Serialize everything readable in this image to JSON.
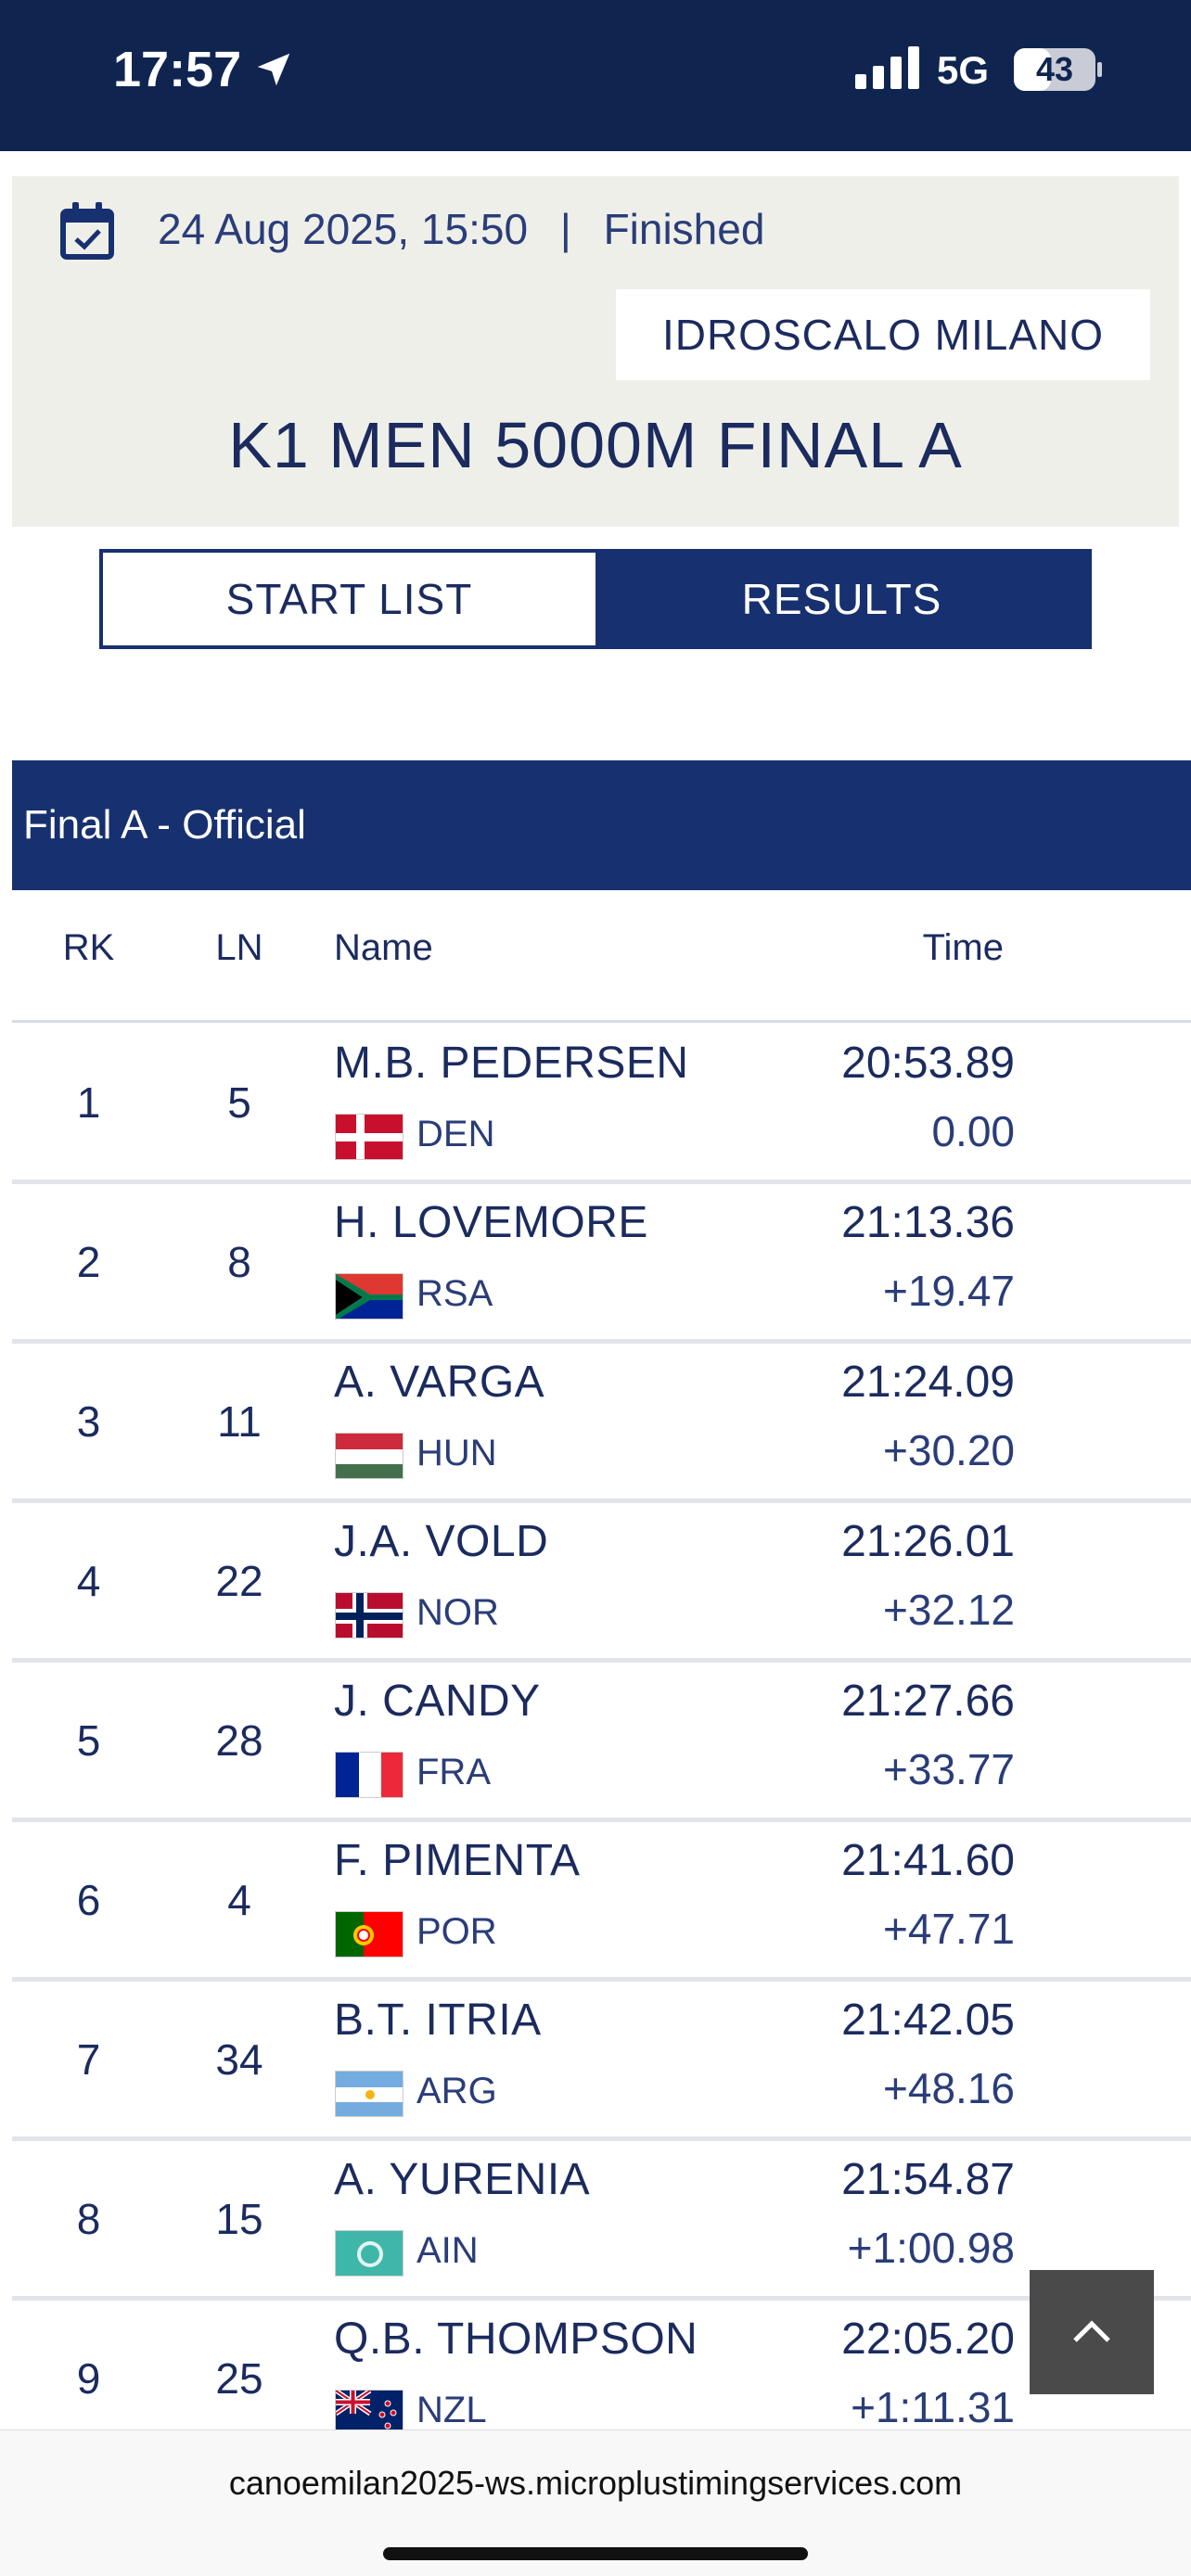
{
  "status_bar": {
    "time": "17:57",
    "network": "5G",
    "battery": "43"
  },
  "event": {
    "date_time": "24 Aug 2025, 15:50",
    "separator": "|",
    "status": "Finished",
    "venue": "IDROSCALO MILANO",
    "title": "K1 MEN 5000M FINAL A"
  },
  "tabs": [
    {
      "label": "START LIST",
      "active": false
    },
    {
      "label": "RESULTS",
      "active": true
    }
  ],
  "results": {
    "header": "Final A  -  Official",
    "columns": {
      "rank": "RK",
      "lane": "LN",
      "name": "Name",
      "time": "Time"
    },
    "rows": [
      {
        "rank": "1",
        "lane": "5",
        "name": "M.B. PEDERSEN",
        "nat": "DEN",
        "flag": "den-flag-icon",
        "time": "20:53.89",
        "gap": "0.00"
      },
      {
        "rank": "2",
        "lane": "8",
        "name": "H. LOVEMORE",
        "nat": "RSA",
        "flag": "rsa-flag-icon",
        "time": "21:13.36",
        "gap": "+19.47"
      },
      {
        "rank": "3",
        "lane": "11",
        "name": "A. VARGA",
        "nat": "HUN",
        "flag": "hun-flag-icon",
        "time": "21:24.09",
        "gap": "+30.20"
      },
      {
        "rank": "4",
        "lane": "22",
        "name": "J.A. VOLD",
        "nat": "NOR",
        "flag": "nor-flag-icon",
        "time": "21:26.01",
        "gap": "+32.12"
      },
      {
        "rank": "5",
        "lane": "28",
        "name": "J. CANDY",
        "nat": "FRA",
        "flag": "fra-flag-icon",
        "time": "21:27.66",
        "gap": "+33.77"
      },
      {
        "rank": "6",
        "lane": "4",
        "name": "F. PIMENTA",
        "nat": "POR",
        "flag": "por-flag-icon",
        "time": "21:41.60",
        "gap": "+47.71"
      },
      {
        "rank": "7",
        "lane": "34",
        "name": "B.T. ITRIA",
        "nat": "ARG",
        "flag": "arg-flag-icon",
        "time": "21:42.05",
        "gap": "+48.16"
      },
      {
        "rank": "8",
        "lane": "15",
        "name": "A. YURENIA",
        "nat": "AIN",
        "flag": "ain-flag-icon",
        "time": "21:54.87",
        "gap": "+1:00.98"
      },
      {
        "rank": "9",
        "lane": "25",
        "name": "Q.B. THOMPSON",
        "nat": "NZL",
        "flag": "nzl-flag-icon",
        "time": "22:05.20",
        "gap": "+1:11.31"
      }
    ]
  },
  "browser": {
    "url": "canoemilan2025-ws.microplustimingservices.com"
  },
  "colors": {
    "navy": "#17306f",
    "status_bar": "#0f2550",
    "card_bg": "#efefea"
  }
}
